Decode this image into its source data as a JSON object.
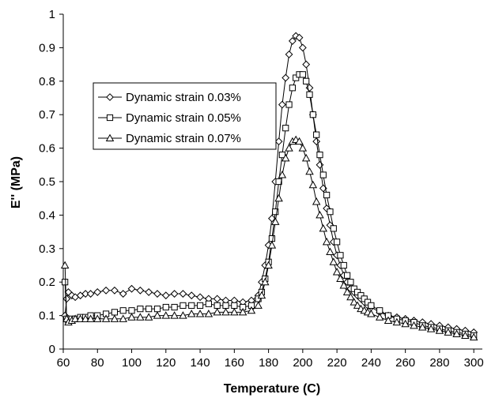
{
  "chart_data": {
    "type": "line",
    "title": "",
    "xlabel": "Temperature (C)",
    "ylabel": "E'' (MPa)",
    "xlim": [
      60,
      305
    ],
    "ylim": [
      0,
      1
    ],
    "x_ticks": [
      "60",
      "80",
      "100",
      "120",
      "140",
      "160",
      "180",
      "200",
      "220",
      "240",
      "260",
      "280",
      "300"
    ],
    "y_ticks": [
      "0",
      "0.1",
      "0.2",
      "0.3",
      "0.4",
      "0.5",
      "0.6",
      "0.7",
      "0.8",
      "0.9",
      "1"
    ],
    "grid": false,
    "legend_position": "upper-left",
    "series": [
      {
        "name": "Dynamic strain 0.03%",
        "marker": "diamond",
        "x": [
          61,
          62,
          63,
          65,
          67,
          70,
          73,
          76,
          80,
          85,
          90,
          95,
          100,
          105,
          110,
          115,
          120,
          125,
          130,
          135,
          140,
          145,
          150,
          155,
          160,
          165,
          170,
          174,
          176,
          178,
          180,
          182,
          184,
          186,
          188,
          190,
          192,
          194,
          196,
          198,
          200,
          202,
          204,
          206,
          208,
          210,
          212,
          214,
          216,
          218,
          220,
          222,
          224,
          226,
          228,
          230,
          232,
          234,
          236,
          238,
          240,
          245,
          250,
          255,
          260,
          265,
          270,
          275,
          280,
          285,
          290,
          295,
          300
        ],
        "y": [
          0.1,
          0.15,
          0.17,
          0.16,
          0.155,
          0.16,
          0.165,
          0.165,
          0.17,
          0.175,
          0.175,
          0.165,
          0.18,
          0.175,
          0.17,
          0.165,
          0.16,
          0.165,
          0.165,
          0.16,
          0.155,
          0.15,
          0.15,
          0.145,
          0.145,
          0.14,
          0.145,
          0.16,
          0.2,
          0.25,
          0.31,
          0.39,
          0.5,
          0.62,
          0.73,
          0.81,
          0.88,
          0.92,
          0.935,
          0.93,
          0.9,
          0.85,
          0.78,
          0.7,
          0.62,
          0.55,
          0.48,
          0.42,
          0.37,
          0.32,
          0.28,
          0.25,
          0.22,
          0.2,
          0.18,
          0.17,
          0.16,
          0.15,
          0.14,
          0.13,
          0.125,
          0.11,
          0.1,
          0.095,
          0.09,
          0.085,
          0.08,
          0.075,
          0.07,
          0.065,
          0.06,
          0.055,
          0.05
        ]
      },
      {
        "name": "Dynamic strain 0.05%",
        "marker": "square",
        "x": [
          61,
          62,
          63,
          65,
          67,
          70,
          73,
          76,
          80,
          85,
          90,
          95,
          100,
          105,
          110,
          115,
          120,
          125,
          130,
          135,
          140,
          145,
          150,
          155,
          160,
          165,
          170,
          174,
          176,
          178,
          180,
          182,
          184,
          186,
          188,
          190,
          192,
          194,
          196,
          198,
          200,
          202,
          204,
          206,
          208,
          210,
          212,
          214,
          216,
          218,
          220,
          222,
          224,
          226,
          228,
          230,
          232,
          234,
          236,
          238,
          240,
          245,
          250,
          255,
          260,
          265,
          270,
          275,
          280,
          285,
          290,
          295,
          300
        ],
        "y": [
          0.2,
          0.09,
          0.085,
          0.09,
          0.09,
          0.095,
          0.095,
          0.1,
          0.1,
          0.105,
          0.11,
          0.115,
          0.115,
          0.12,
          0.12,
          0.12,
          0.125,
          0.125,
          0.13,
          0.13,
          0.13,
          0.135,
          0.13,
          0.13,
          0.13,
          0.125,
          0.13,
          0.15,
          0.17,
          0.21,
          0.26,
          0.33,
          0.41,
          0.5,
          0.58,
          0.66,
          0.73,
          0.78,
          0.81,
          0.82,
          0.82,
          0.8,
          0.76,
          0.7,
          0.64,
          0.58,
          0.52,
          0.46,
          0.41,
          0.36,
          0.32,
          0.28,
          0.25,
          0.22,
          0.2,
          0.18,
          0.17,
          0.16,
          0.15,
          0.14,
          0.13,
          0.115,
          0.1,
          0.09,
          0.085,
          0.08,
          0.07,
          0.065,
          0.06,
          0.055,
          0.05,
          0.045,
          0.04
        ]
      },
      {
        "name": "Dynamic strain 0.07%",
        "marker": "triangle",
        "x": [
          61,
          62,
          63,
          65,
          67,
          70,
          73,
          76,
          80,
          85,
          90,
          95,
          100,
          105,
          110,
          115,
          120,
          125,
          130,
          135,
          140,
          145,
          150,
          155,
          160,
          165,
          170,
          174,
          176,
          178,
          180,
          182,
          184,
          186,
          188,
          190,
          192,
          194,
          196,
          198,
          200,
          202,
          204,
          206,
          208,
          210,
          212,
          214,
          216,
          218,
          220,
          222,
          224,
          226,
          228,
          230,
          232,
          234,
          236,
          238,
          240,
          245,
          250,
          255,
          260,
          265,
          270,
          275,
          280,
          285,
          290,
          295,
          300
        ],
        "y": [
          0.25,
          0.09,
          0.08,
          0.085,
          0.09,
          0.09,
          0.09,
          0.09,
          0.09,
          0.09,
          0.09,
          0.09,
          0.095,
          0.095,
          0.095,
          0.1,
          0.1,
          0.1,
          0.1,
          0.105,
          0.105,
          0.105,
          0.11,
          0.11,
          0.11,
          0.11,
          0.115,
          0.13,
          0.16,
          0.2,
          0.25,
          0.31,
          0.38,
          0.45,
          0.52,
          0.57,
          0.6,
          0.62,
          0.625,
          0.62,
          0.6,
          0.57,
          0.53,
          0.49,
          0.44,
          0.4,
          0.36,
          0.32,
          0.29,
          0.26,
          0.23,
          0.21,
          0.19,
          0.17,
          0.155,
          0.14,
          0.13,
          0.12,
          0.115,
          0.11,
          0.105,
          0.095,
          0.085,
          0.08,
          0.075,
          0.07,
          0.065,
          0.06,
          0.055,
          0.05,
          0.045,
          0.04,
          0.035
        ]
      }
    ]
  }
}
